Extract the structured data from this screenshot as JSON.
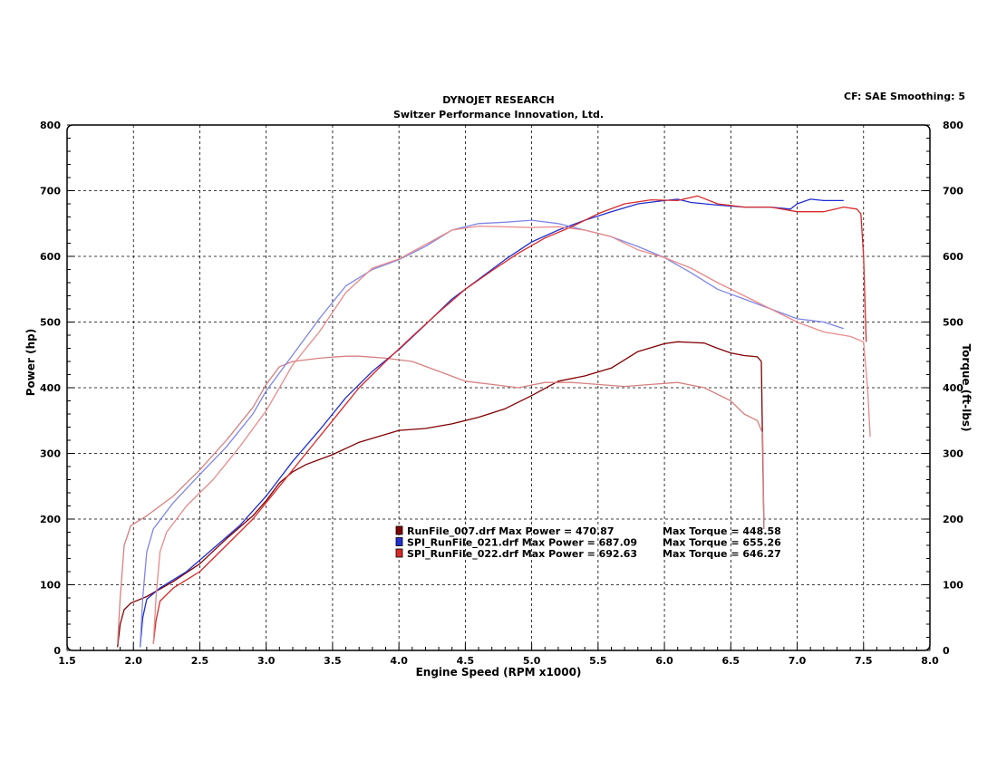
{
  "header": {
    "title_line1": "DYNOJET RESEARCH",
    "title_line2": "Switzer Performance Innovation, Ltd.",
    "settings": "CF: SAE  Smoothing: 5"
  },
  "chart_data": {
    "type": "line",
    "xlabel": "Engine Speed (RPM x1000)",
    "ylabel_left": "Power (hp)",
    "ylabel_right": "Torque (ft-lbs)",
    "xlim": [
      1.5,
      8.0
    ],
    "ylim": [
      0,
      800
    ],
    "xticks": [
      "1.5",
      "2.0",
      "2.5",
      "3.0",
      "3.5",
      "4.0",
      "4.5",
      "5.0",
      "5.5",
      "6.0",
      "6.5",
      "7.0",
      "7.5",
      "8.0"
    ],
    "yticks": [
      "0",
      "100",
      "200",
      "300",
      "400",
      "500",
      "600",
      "700",
      "800"
    ],
    "grid": true,
    "legend_position": "lower-center",
    "legend": [
      {
        "file": "RunFile_007.drf",
        "power_label": "Max Power = 470.87",
        "torque_label": "Max Torque = 448.58",
        "color": "#800000"
      },
      {
        "file": "SPI_RunFile_021.drf",
        "power_label": "Max Power = 687.09",
        "torque_label": "Max Torque = 655.26",
        "color": "#1f2fd0"
      },
      {
        "file": "SPI_RunFile_022.drf",
        "power_label": "Max Power = 692.63",
        "torque_label": "Max Torque = 646.27",
        "color": "#d82a2a"
      }
    ],
    "series": [
      {
        "name": "RunFile_007.drf",
        "measure": "power",
        "color": "#800000",
        "points": [
          [
            1.88,
            5
          ],
          [
            1.9,
            40
          ],
          [
            1.93,
            62
          ],
          [
            1.98,
            72
          ],
          [
            2.1,
            82
          ],
          [
            2.3,
            105
          ],
          [
            2.5,
            132
          ],
          [
            2.7,
            170
          ],
          [
            2.9,
            205
          ],
          [
            3.0,
            228
          ],
          [
            3.1,
            255
          ],
          [
            3.2,
            272
          ],
          [
            3.3,
            283
          ],
          [
            3.5,
            298
          ],
          [
            3.7,
            317
          ],
          [
            3.9,
            329
          ],
          [
            4.0,
            335
          ],
          [
            4.2,
            338
          ],
          [
            4.4,
            345
          ],
          [
            4.6,
            355
          ],
          [
            4.8,
            368
          ],
          [
            5.0,
            388
          ],
          [
            5.2,
            410
          ],
          [
            5.4,
            418
          ],
          [
            5.6,
            430
          ],
          [
            5.8,
            455
          ],
          [
            6.0,
            467
          ],
          [
            6.1,
            470
          ],
          [
            6.3,
            468
          ],
          [
            6.4,
            460
          ],
          [
            6.5,
            453
          ],
          [
            6.6,
            449
          ],
          [
            6.7,
            447
          ],
          [
            6.73,
            440
          ],
          [
            6.74,
            300
          ],
          [
            6.75,
            185
          ]
        ]
      },
      {
        "name": "RunFile_007.drf",
        "measure": "torque",
        "color": "#d68080",
        "points": [
          [
            1.88,
            10
          ],
          [
            1.9,
            80
          ],
          [
            1.93,
            160
          ],
          [
            1.98,
            190
          ],
          [
            2.1,
            205
          ],
          [
            2.3,
            235
          ],
          [
            2.5,
            275
          ],
          [
            2.7,
            320
          ],
          [
            2.9,
            370
          ],
          [
            3.0,
            405
          ],
          [
            3.1,
            432
          ],
          [
            3.2,
            440
          ],
          [
            3.4,
            445
          ],
          [
            3.6,
            448
          ],
          [
            3.7,
            448
          ],
          [
            3.9,
            445
          ],
          [
            4.1,
            440
          ],
          [
            4.3,
            425
          ],
          [
            4.5,
            410
          ],
          [
            4.7,
            405
          ],
          [
            4.9,
            400
          ],
          [
            5.1,
            408
          ],
          [
            5.3,
            408
          ],
          [
            5.5,
            405
          ],
          [
            5.7,
            402
          ],
          [
            5.9,
            405
          ],
          [
            6.1,
            408
          ],
          [
            6.3,
            400
          ],
          [
            6.5,
            380
          ],
          [
            6.6,
            360
          ],
          [
            6.7,
            350
          ],
          [
            6.74,
            330
          ],
          [
            6.75,
            185
          ]
        ]
      },
      {
        "name": "SPI_RunFile_021.drf",
        "measure": "power",
        "color": "#1f2fd0",
        "points": [
          [
            2.05,
            5
          ],
          [
            2.07,
            50
          ],
          [
            2.1,
            78
          ],
          [
            2.2,
            95
          ],
          [
            2.4,
            120
          ],
          [
            2.6,
            155
          ],
          [
            2.8,
            190
          ],
          [
            3.0,
            235
          ],
          [
            3.2,
            288
          ],
          [
            3.4,
            335
          ],
          [
            3.6,
            385
          ],
          [
            3.8,
            425
          ],
          [
            4.0,
            458
          ],
          [
            4.2,
            496
          ],
          [
            4.4,
            535
          ],
          [
            4.6,
            565
          ],
          [
            4.8,
            595
          ],
          [
            5.0,
            622
          ],
          [
            5.2,
            640
          ],
          [
            5.4,
            655
          ],
          [
            5.6,
            668
          ],
          [
            5.8,
            680
          ],
          [
            6.0,
            685
          ],
          [
            6.1,
            687
          ],
          [
            6.2,
            682
          ],
          [
            6.4,
            678
          ],
          [
            6.6,
            675
          ],
          [
            6.8,
            675
          ],
          [
            6.95,
            672
          ],
          [
            7.0,
            680
          ],
          [
            7.1,
            687
          ],
          [
            7.2,
            685
          ],
          [
            7.35,
            685
          ]
        ]
      },
      {
        "name": "SPI_RunFile_021.drf",
        "measure": "torque",
        "color": "#7f86e6",
        "points": [
          [
            2.05,
            5
          ],
          [
            2.07,
            80
          ],
          [
            2.1,
            150
          ],
          [
            2.15,
            185
          ],
          [
            2.3,
            225
          ],
          [
            2.5,
            268
          ],
          [
            2.7,
            310
          ],
          [
            2.9,
            360
          ],
          [
            3.0,
            395
          ],
          [
            3.2,
            450
          ],
          [
            3.4,
            505
          ],
          [
            3.6,
            555
          ],
          [
            3.8,
            580
          ],
          [
            4.0,
            595
          ],
          [
            4.2,
            615
          ],
          [
            4.4,
            640
          ],
          [
            4.6,
            650
          ],
          [
            4.8,
            652
          ],
          [
            5.0,
            655
          ],
          [
            5.2,
            650
          ],
          [
            5.4,
            640
          ],
          [
            5.6,
            630
          ],
          [
            5.8,
            615
          ],
          [
            6.0,
            598
          ],
          [
            6.2,
            575
          ],
          [
            6.4,
            550
          ],
          [
            6.6,
            535
          ],
          [
            6.8,
            520
          ],
          [
            7.0,
            505
          ],
          [
            7.2,
            500
          ],
          [
            7.35,
            490
          ]
        ]
      },
      {
        "name": "SPI_RunFile_022.drf",
        "measure": "power",
        "color": "#d82a2a",
        "points": [
          [
            2.15,
            10
          ],
          [
            2.17,
            45
          ],
          [
            2.2,
            75
          ],
          [
            2.3,
            95
          ],
          [
            2.5,
            120
          ],
          [
            2.7,
            160
          ],
          [
            2.9,
            200
          ],
          [
            3.1,
            250
          ],
          [
            3.3,
            300
          ],
          [
            3.5,
            350
          ],
          [
            3.7,
            400
          ],
          [
            3.9,
            440
          ],
          [
            4.1,
            478
          ],
          [
            4.3,
            515
          ],
          [
            4.5,
            550
          ],
          [
            4.7,
            578
          ],
          [
            4.9,
            605
          ],
          [
            5.1,
            628
          ],
          [
            5.3,
            645
          ],
          [
            5.5,
            665
          ],
          [
            5.7,
            680
          ],
          [
            5.9,
            686
          ],
          [
            6.1,
            685
          ],
          [
            6.25,
            692
          ],
          [
            6.4,
            680
          ],
          [
            6.6,
            675
          ],
          [
            6.8,
            675
          ],
          [
            7.0,
            668
          ],
          [
            7.2,
            668
          ],
          [
            7.35,
            675
          ],
          [
            7.45,
            672
          ],
          [
            7.48,
            665
          ],
          [
            7.5,
            600
          ],
          [
            7.52,
            470
          ]
        ]
      },
      {
        "name": "SPI_RunFile_022.drf",
        "measure": "torque",
        "color": "#e88a8a",
        "points": [
          [
            2.15,
            10
          ],
          [
            2.17,
            80
          ],
          [
            2.2,
            150
          ],
          [
            2.25,
            180
          ],
          [
            2.4,
            220
          ],
          [
            2.6,
            260
          ],
          [
            2.8,
            310
          ],
          [
            3.0,
            365
          ],
          [
            3.2,
            435
          ],
          [
            3.4,
            485
          ],
          [
            3.6,
            545
          ],
          [
            3.8,
            582
          ],
          [
            4.0,
            596
          ],
          [
            4.2,
            618
          ],
          [
            4.4,
            640
          ],
          [
            4.6,
            646
          ],
          [
            4.8,
            645
          ],
          [
            5.0,
            644
          ],
          [
            5.2,
            645
          ],
          [
            5.4,
            640
          ],
          [
            5.6,
            630
          ],
          [
            5.8,
            610
          ],
          [
            6.0,
            598
          ],
          [
            6.2,
            582
          ],
          [
            6.4,
            560
          ],
          [
            6.6,
            540
          ],
          [
            6.8,
            520
          ],
          [
            7.0,
            500
          ],
          [
            7.2,
            485
          ],
          [
            7.4,
            478
          ],
          [
            7.5,
            470
          ],
          [
            7.53,
            400
          ],
          [
            7.55,
            325
          ]
        ]
      }
    ]
  }
}
